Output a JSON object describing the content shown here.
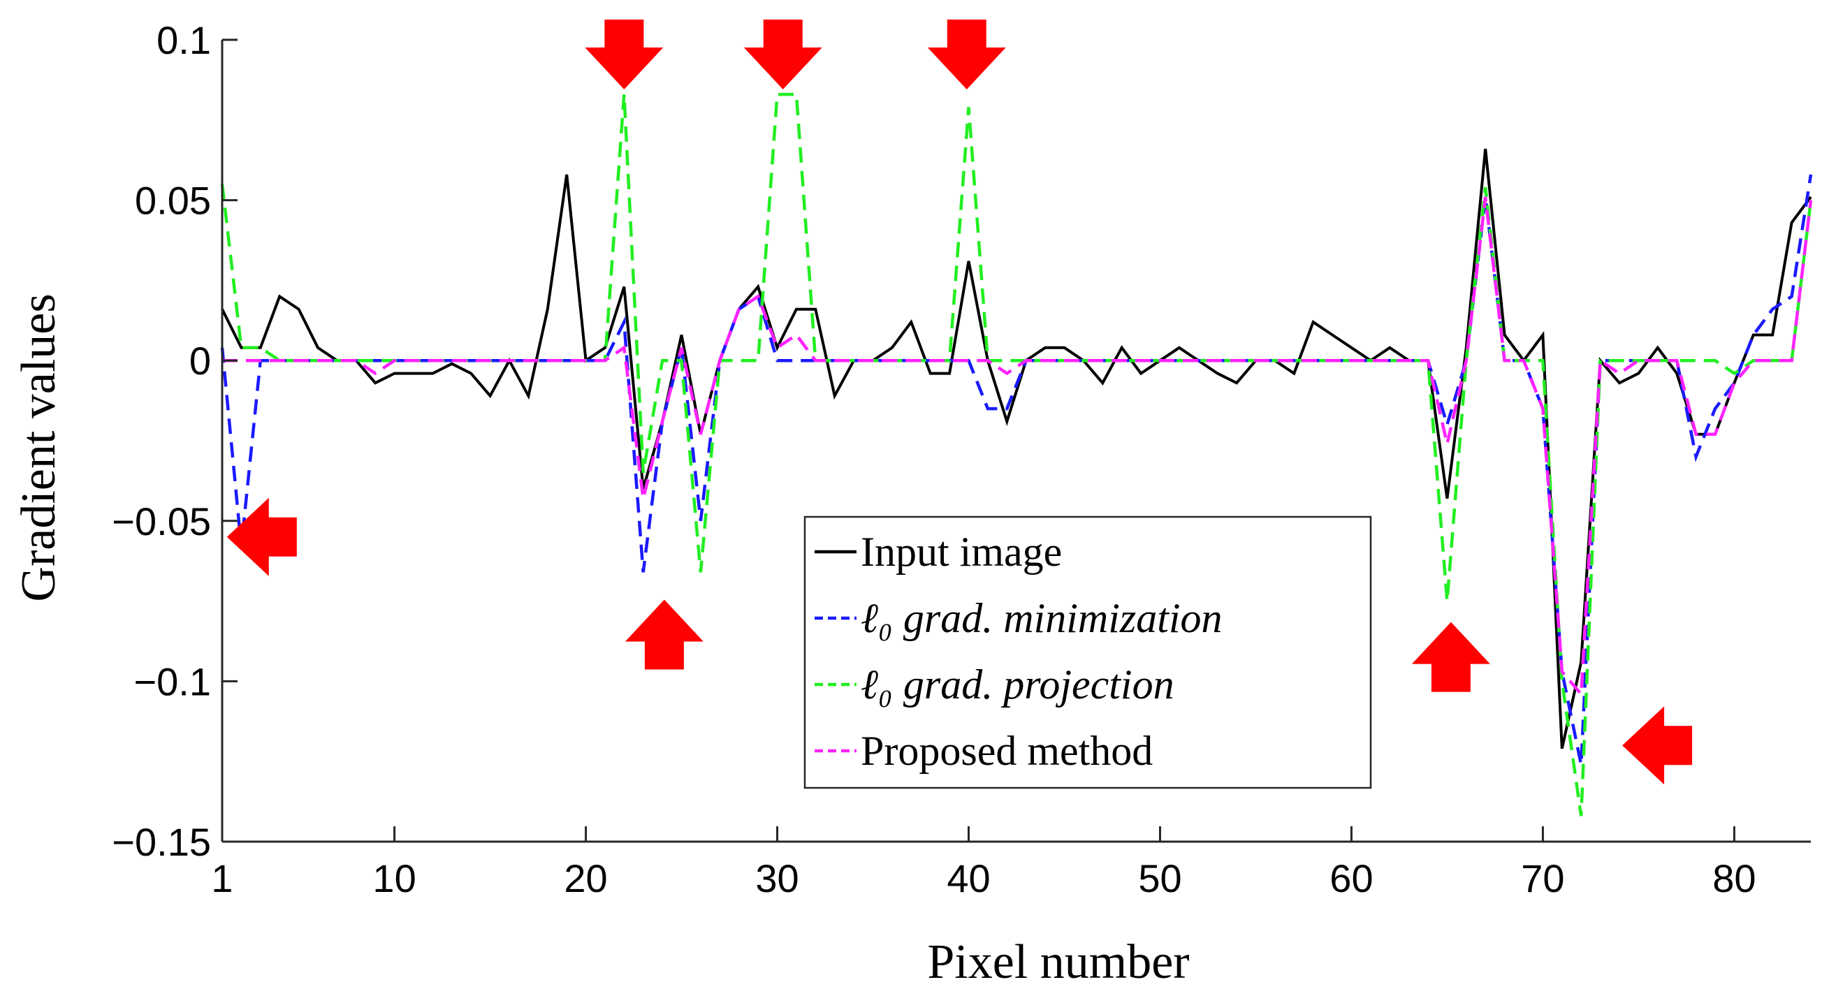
{
  "chart_data": {
    "type": "line",
    "xlabel": "Pixel number",
    "ylabel": "Gradient values",
    "xlim": [
      1,
      84
    ],
    "ylim": [
      -0.15,
      0.1
    ],
    "xticks": [
      1,
      10,
      20,
      30,
      40,
      50,
      60,
      70,
      80
    ],
    "xtick_labels": [
      "1",
      "10",
      "20",
      "30",
      "40",
      "50",
      "60",
      "70",
      "80"
    ],
    "yticks": [
      -0.15,
      -0.1,
      -0.05,
      0,
      0.05,
      0.1
    ],
    "ytick_labels": [
      "−0.15",
      "−0.1",
      "−0.05",
      "0",
      "0.05",
      "0.1"
    ],
    "legend_position": "lower-center",
    "series": [
      {
        "name": "Input image",
        "color": "#000000",
        "dash": "solid",
        "x": [
          1,
          2,
          3,
          4,
          5,
          6,
          7,
          8,
          9,
          10,
          11,
          12,
          13,
          14,
          15,
          16,
          17,
          18,
          19,
          20,
          21,
          22,
          23,
          24,
          25,
          26,
          27,
          28,
          29,
          30,
          31,
          32,
          33,
          34,
          35,
          36,
          37,
          38,
          39,
          40,
          41,
          42,
          43,
          44,
          45,
          46,
          47,
          48,
          49,
          50,
          51,
          52,
          53,
          54,
          55,
          56,
          57,
          58,
          59,
          60,
          61,
          62,
          63,
          64,
          65,
          66,
          67,
          68,
          69,
          70,
          71,
          72,
          73,
          74,
          75,
          76,
          77,
          78,
          79,
          80,
          81,
          82,
          83,
          84
        ],
        "y": [
          0.016,
          0.004,
          0.004,
          0.02,
          0.016,
          0.004,
          0,
          0,
          -0.007,
          -0.004,
          -0.004,
          -0.004,
          -0.001,
          -0.004,
          -0.011,
          0,
          -0.011,
          0.016,
          0.058,
          0,
          0.004,
          0.023,
          -0.04,
          -0.019,
          0.008,
          -0.023,
          0,
          0.016,
          0.023,
          0.004,
          0.016,
          0.016,
          -0.011,
          0,
          0,
          0.004,
          0.012,
          -0.004,
          -0.004,
          0.031,
          0,
          -0.019,
          0,
          0.004,
          0.004,
          0,
          -0.007,
          0.004,
          -0.004,
          0,
          0.004,
          0,
          -0.004,
          -0.007,
          0,
          0,
          -0.004,
          0.012,
          0.008,
          0.004,
          0,
          0.004,
          0,
          0,
          -0.043,
          0.004,
          0.066,
          0.008,
          0,
          0.008,
          -0.121,
          -0.094,
          0,
          -0.007,
          -0.004,
          0.004,
          -0.004,
          -0.023,
          -0.023,
          -0.007,
          0.008,
          0.008,
          0.043,
          0.051
        ]
      },
      {
        "name": "ℓ₀ grad. minimization",
        "color": "#1a1aff",
        "dash": "dashed",
        "x": [
          1,
          2,
          3,
          4,
          5,
          6,
          7,
          8,
          9,
          10,
          11,
          12,
          13,
          14,
          15,
          16,
          17,
          18,
          19,
          20,
          21,
          22,
          23,
          24,
          25,
          26,
          27,
          28,
          29,
          30,
          31,
          32,
          33,
          34,
          35,
          36,
          37,
          38,
          39,
          40,
          41,
          42,
          43,
          44,
          45,
          46,
          47,
          48,
          49,
          50,
          51,
          52,
          53,
          54,
          55,
          56,
          57,
          58,
          59,
          60,
          61,
          62,
          63,
          64,
          65,
          66,
          67,
          68,
          69,
          70,
          71,
          72,
          73,
          74,
          75,
          76,
          77,
          78,
          79,
          80,
          81,
          82,
          83,
          84
        ],
        "y": [
          0.004,
          -0.058,
          0,
          0,
          0,
          0,
          0,
          0,
          0,
          0,
          0,
          0,
          0,
          0,
          0,
          0,
          0,
          0,
          0,
          0,
          0,
          0.012,
          -0.066,
          -0.019,
          0.004,
          -0.05,
          0,
          0.016,
          0.02,
          0,
          0,
          0,
          0,
          0,
          0,
          0,
          0,
          0,
          0,
          0,
          -0.015,
          -0.015,
          0,
          0,
          0,
          0,
          0,
          0,
          0,
          0,
          0,
          0,
          0,
          0,
          0,
          0,
          0,
          0,
          0,
          0,
          0,
          0,
          0,
          0,
          -0.02,
          0,
          0.051,
          0,
          0,
          -0.015,
          -0.097,
          -0.126,
          0,
          0,
          0,
          0,
          0,
          -0.03,
          -0.015,
          -0.007,
          0.008,
          0.016,
          0.02,
          0.058
        ]
      },
      {
        "name": "ℓ₀ grad. projection",
        "color": "#22ee22",
        "dash": "dashed",
        "x": [
          1,
          2,
          3,
          4,
          5,
          6,
          7,
          8,
          9,
          10,
          11,
          12,
          13,
          14,
          15,
          16,
          17,
          18,
          19,
          20,
          21,
          22,
          23,
          24,
          25,
          26,
          27,
          28,
          29,
          30,
          31,
          32,
          33,
          34,
          35,
          36,
          37,
          38,
          39,
          40,
          41,
          42,
          43,
          44,
          45,
          46,
          47,
          48,
          49,
          50,
          51,
          52,
          53,
          54,
          55,
          56,
          57,
          58,
          59,
          60,
          61,
          62,
          63,
          64,
          65,
          66,
          67,
          68,
          69,
          70,
          71,
          72,
          73,
          74,
          75,
          76,
          77,
          78,
          79,
          80,
          81,
          82,
          83,
          84
        ],
        "y": [
          0.055,
          0.004,
          0.004,
          0,
          0,
          0,
          0,
          0,
          0,
          0,
          0,
          0,
          0,
          0,
          0,
          0,
          0,
          0,
          0,
          0,
          0,
          0.083,
          -0.035,
          0,
          0,
          -0.066,
          0,
          0,
          0,
          0.083,
          0.083,
          0,
          0,
          0,
          0,
          0,
          0,
          0,
          0,
          0.079,
          0,
          0,
          0,
          0,
          0,
          0,
          0,
          0,
          0,
          0,
          0,
          0,
          0,
          0,
          0,
          0,
          0,
          0,
          0,
          0,
          0,
          0,
          0,
          0,
          -0.075,
          0,
          0.054,
          0,
          0,
          0,
          -0.1,
          -0.142,
          0,
          0,
          0,
          0,
          0,
          0,
          0,
          -0.004,
          0,
          0,
          0,
          0.05
        ]
      },
      {
        "name": "Proposed method",
        "color": "#ff22ff",
        "dash": "dashed",
        "x": [
          1,
          2,
          3,
          4,
          5,
          6,
          7,
          8,
          9,
          10,
          11,
          12,
          13,
          14,
          15,
          16,
          17,
          18,
          19,
          20,
          21,
          22,
          23,
          24,
          25,
          26,
          27,
          28,
          29,
          30,
          31,
          32,
          33,
          34,
          35,
          36,
          37,
          38,
          39,
          40,
          41,
          42,
          43,
          44,
          45,
          46,
          47,
          48,
          49,
          50,
          51,
          52,
          53,
          54,
          55,
          56,
          57,
          58,
          59,
          60,
          61,
          62,
          63,
          64,
          65,
          66,
          67,
          68,
          69,
          70,
          71,
          72,
          73,
          74,
          75,
          76,
          77,
          78,
          79,
          80,
          81,
          82,
          83,
          84
        ],
        "y": [
          0,
          0,
          0,
          0,
          0,
          0,
          0,
          0,
          -0.004,
          0,
          0,
          0,
          0,
          0,
          0,
          0,
          0,
          0,
          0,
          0,
          0,
          0.004,
          -0.043,
          -0.019,
          0.004,
          -0.023,
          0,
          0.016,
          0.02,
          0.004,
          0.008,
          0,
          0,
          0,
          0,
          0,
          0,
          0,
          0,
          0,
          0,
          -0.004,
          0,
          0,
          0,
          0,
          0,
          0,
          0,
          0,
          0,
          0,
          0,
          0,
          0,
          0,
          0,
          0,
          0,
          0,
          0,
          0,
          0,
          0,
          -0.026,
          0,
          0.051,
          0,
          0,
          -0.015,
          -0.097,
          -0.104,
          0,
          -0.004,
          0,
          0,
          0,
          -0.023,
          -0.023,
          -0.007,
          0,
          0,
          0,
          0.05
        ]
      }
    ],
    "annotations": [
      {
        "type": "arrow",
        "direction": "left",
        "x": 3,
        "y": -0.055,
        "color": "#ff0000"
      },
      {
        "type": "arrow",
        "direction": "down",
        "x": 22,
        "y": 0.095,
        "color": "#ff0000"
      },
      {
        "type": "arrow",
        "direction": "down",
        "x": 30.3,
        "y": 0.095,
        "color": "#ff0000"
      },
      {
        "type": "arrow",
        "direction": "down",
        "x": 39.9,
        "y": 0.095,
        "color": "#ff0000"
      },
      {
        "type": "arrow",
        "direction": "up",
        "x": 24.1,
        "y": -0.085,
        "color": "#ff0000"
      },
      {
        "type": "arrow",
        "direction": "up",
        "x": 65.2,
        "y": -0.092,
        "color": "#ff0000"
      },
      {
        "type": "arrow",
        "direction": "left",
        "x": 75.9,
        "y": -0.12,
        "color": "#ff0000"
      }
    ]
  }
}
